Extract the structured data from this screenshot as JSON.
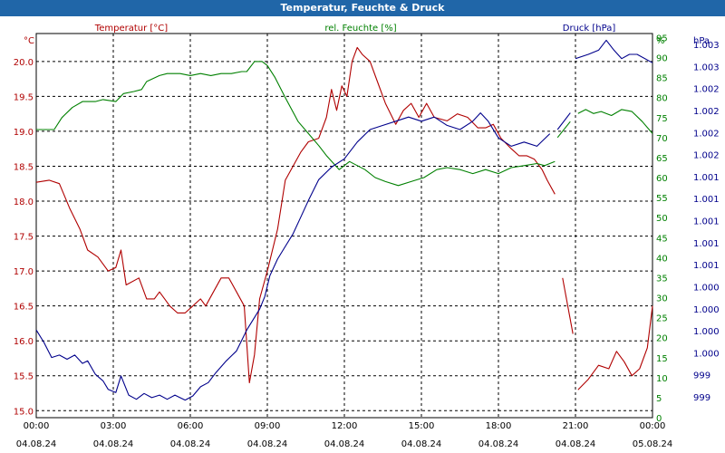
{
  "window": {
    "title": "Temperatur, Feuchte & Druck"
  },
  "colors": {
    "temperature": "#b00000",
    "humidity": "#008000",
    "pressure": "#00008b",
    "titlebar": "#2066a8"
  },
  "chart_data": {
    "type": "line",
    "title": "Temperatur, Feuchte & Druck",
    "grid": true,
    "x": {
      "ticks": [
        {
          "time": "00:00",
          "date": "04.08.24"
        },
        {
          "time": "03:00",
          "date": "04.08.24"
        },
        {
          "time": "06:00",
          "date": "04.08.24"
        },
        {
          "time": "09:00",
          "date": "04.08.24"
        },
        {
          "time": "12:00",
          "date": "04.08.24"
        },
        {
          "time": "15:00",
          "date": "04.08.24"
        },
        {
          "time": "18:00",
          "date": "04.08.24"
        },
        {
          "time": "21:00",
          "date": "04.08.24"
        },
        {
          "time": "00:00",
          "date": "05.08.24"
        }
      ],
      "range_hours": [
        0,
        24
      ]
    },
    "axes": {
      "temperature": {
        "label": "Temperatur [°C]",
        "unit": "°C",
        "range": [
          14.9,
          20.4
        ],
        "ticks": [
          "20.0",
          "19.5",
          "19.0",
          "18.5",
          "18.0",
          "17.5",
          "17.0",
          "16.5",
          "16.0",
          "15.5",
          "15.0"
        ]
      },
      "humidity": {
        "label": "rel. Feuchte [%]",
        "unit": "%",
        "range": [
          0,
          96
        ],
        "ticks": [
          "95",
          "90",
          "85",
          "80",
          "75",
          "70",
          "65",
          "60",
          "55",
          "50",
          "45",
          "40",
          "35",
          "30",
          "25",
          "20",
          "15",
          "10",
          "5",
          "0"
        ]
      },
      "pressure": {
        "label": "Druck [hPa]",
        "unit": "hPa",
        "range": [
          999.0,
          1003.6
        ],
        "ticks": [
          "1.003",
          "1.003",
          "1.002",
          "1.002",
          "1.002",
          "1.002",
          "1.001",
          "1.001",
          "1.001",
          "1.001",
          "1.001",
          "1.000",
          "1.000",
          "1.000",
          "1.000",
          "999",
          "999"
        ]
      }
    },
    "series": [
      {
        "name": "Temperatur",
        "axis": "temperature",
        "segments": [
          [
            [
              0,
              18.27
            ],
            [
              0.5,
              18.3
            ],
            [
              0.9,
              18.25
            ],
            [
              1.3,
              17.9
            ],
            [
              1.7,
              17.6
            ],
            [
              2.0,
              17.3
            ],
            [
              2.4,
              17.2
            ],
            [
              2.8,
              17.0
            ],
            [
              3.1,
              17.05
            ],
            [
              3.3,
              17.3
            ],
            [
              3.5,
              16.8
            ],
            [
              4.0,
              16.9
            ],
            [
              4.3,
              16.6
            ],
            [
              4.6,
              16.6
            ],
            [
              4.8,
              16.7
            ],
            [
              5.0,
              16.6
            ],
            [
              5.2,
              16.5
            ],
            [
              5.5,
              16.4
            ],
            [
              5.8,
              16.4
            ],
            [
              6.1,
              16.5
            ],
            [
              6.4,
              16.6
            ],
            [
              6.6,
              16.5
            ],
            [
              6.9,
              16.7
            ],
            [
              7.2,
              16.9
            ],
            [
              7.5,
              16.9
            ],
            [
              7.8,
              16.7
            ],
            [
              8.1,
              16.5
            ],
            [
              8.3,
              15.4
            ],
            [
              8.5,
              15.8
            ],
            [
              8.7,
              16.6
            ],
            [
              9.0,
              17.0
            ],
            [
              9.4,
              17.6
            ],
            [
              9.7,
              18.3
            ],
            [
              10.0,
              18.5
            ],
            [
              10.3,
              18.7
            ],
            [
              10.6,
              18.85
            ],
            [
              11.0,
              18.9
            ],
            [
              11.3,
              19.2
            ],
            [
              11.5,
              19.6
            ],
            [
              11.7,
              19.3
            ],
            [
              11.9,
              19.65
            ],
            [
              12.1,
              19.5
            ],
            [
              12.3,
              20.0
            ],
            [
              12.5,
              20.2
            ],
            [
              12.7,
              20.1
            ],
            [
              13.0,
              20.0
            ],
            [
              13.3,
              19.7
            ],
            [
              13.6,
              19.4
            ],
            [
              14.0,
              19.1
            ],
            [
              14.3,
              19.3
            ],
            [
              14.6,
              19.4
            ],
            [
              14.9,
              19.2
            ],
            [
              15.2,
              19.4
            ],
            [
              15.5,
              19.2
            ],
            [
              16.0,
              19.15
            ],
            [
              16.4,
              19.25
            ],
            [
              16.8,
              19.2
            ],
            [
              17.2,
              19.05
            ],
            [
              17.5,
              19.05
            ],
            [
              17.8,
              19.1
            ],
            [
              18.1,
              18.9
            ],
            [
              18.5,
              18.75
            ],
            [
              18.8,
              18.65
            ],
            [
              19.1,
              18.65
            ],
            [
              19.4,
              18.6
            ],
            [
              19.7,
              18.45
            ],
            [
              19.9,
              18.3
            ],
            [
              20.2,
              18.1
            ]
          ],
          [
            [
              20.5,
              16.9
            ],
            [
              20.9,
              16.1
            ]
          ],
          [
            [
              21.1,
              15.3
            ],
            [
              21.5,
              15.45
            ],
            [
              21.9,
              15.65
            ],
            [
              22.3,
              15.6
            ],
            [
              22.6,
              15.85
            ],
            [
              22.9,
              15.7
            ],
            [
              23.2,
              15.5
            ],
            [
              23.5,
              15.6
            ],
            [
              23.8,
              15.9
            ],
            [
              24.0,
              16.5
            ]
          ]
        ]
      },
      {
        "name": "rel. Feuchte",
        "axis": "humidity",
        "segments": [
          [
            [
              0,
              72
            ],
            [
              0.7,
              72
            ],
            [
              1.0,
              75
            ],
            [
              1.4,
              77.5
            ],
            [
              1.8,
              79
            ],
            [
              2.3,
              79
            ],
            [
              2.6,
              79.5
            ],
            [
              3.1,
              79
            ],
            [
              3.4,
              81
            ],
            [
              3.8,
              81.5
            ],
            [
              4.1,
              82
            ],
            [
              4.3,
              84
            ],
            [
              4.8,
              85.5
            ],
            [
              5.1,
              86
            ],
            [
              5.6,
              86
            ],
            [
              6.0,
              85.5
            ],
            [
              6.4,
              86
            ],
            [
              6.8,
              85.5
            ],
            [
              7.2,
              86
            ],
            [
              7.6,
              86
            ],
            [
              8.0,
              86.5
            ],
            [
              8.2,
              86.5
            ],
            [
              8.5,
              89
            ],
            [
              8.8,
              89
            ],
            [
              9.0,
              88
            ],
            [
              9.3,
              85
            ],
            [
              9.7,
              80
            ],
            [
              10.2,
              74
            ],
            [
              10.6,
              71
            ],
            [
              11.0,
              68
            ],
            [
              11.3,
              65.5
            ],
            [
              11.8,
              62
            ],
            [
              12.2,
              64
            ],
            [
              12.8,
              62
            ],
            [
              13.2,
              60
            ],
            [
              13.6,
              59
            ],
            [
              14.1,
              58
            ],
            [
              14.6,
              59
            ],
            [
              15.1,
              60
            ],
            [
              15.6,
              62
            ],
            [
              16.0,
              62.5
            ],
            [
              16.5,
              62
            ],
            [
              17.0,
              61
            ],
            [
              17.5,
              62
            ],
            [
              18.0,
              61
            ],
            [
              18.5,
              62.5
            ],
            [
              19.0,
              63
            ],
            [
              19.5,
              63.5
            ],
            [
              19.8,
              63
            ],
            [
              20.2,
              64
            ]
          ],
          [
            [
              20.3,
              70
            ],
            [
              20.8,
              74
            ]
          ],
          [
            [
              21.1,
              76
            ],
            [
              21.4,
              77
            ],
            [
              21.7,
              76
            ],
            [
              22.0,
              76.5
            ],
            [
              22.4,
              75.5
            ],
            [
              22.8,
              77
            ],
            [
              23.2,
              76.5
            ],
            [
              23.6,
              74
            ],
            [
              24.0,
              71
            ]
          ]
        ]
      },
      {
        "name": "Druck",
        "axis": "pressure",
        "segments": [
          [
            [
              0,
              1000.05
            ],
            [
              0.3,
              999.9
            ],
            [
              0.6,
              999.72
            ],
            [
              0.9,
              999.75
            ],
            [
              1.2,
              999.7
            ],
            [
              1.5,
              999.75
            ],
            [
              1.8,
              999.65
            ],
            [
              2.0,
              999.68
            ],
            [
              2.3,
              999.52
            ],
            [
              2.6,
              999.44
            ],
            [
              2.8,
              999.34
            ],
            [
              3.1,
              999.3
            ],
            [
              3.3,
              999.5
            ],
            [
              3.6,
              999.27
            ],
            [
              3.9,
              999.22
            ],
            [
              4.2,
              999.29
            ],
            [
              4.5,
              999.24
            ],
            [
              4.8,
              999.27
            ],
            [
              5.1,
              999.22
            ],
            [
              5.4,
              999.27
            ],
            [
              5.8,
              999.21
            ],
            [
              6.1,
              999.26
            ],
            [
              6.4,
              999.37
            ],
            [
              6.7,
              999.42
            ],
            [
              7.0,
              999.54
            ],
            [
              7.4,
              999.68
            ],
            [
              7.8,
              999.8
            ],
            [
              8.2,
              1000.05
            ],
            [
              8.5,
              1000.2
            ],
            [
              8.7,
              1000.3
            ],
            [
              8.9,
              1000.45
            ],
            [
              9.1,
              1000.7
            ],
            [
              9.4,
              1000.9
            ],
            [
              9.7,
              1001.05
            ],
            [
              10.0,
              1001.2
            ],
            [
              10.3,
              1001.4
            ],
            [
              10.6,
              1001.6
            ],
            [
              11.0,
              1001.85
            ],
            [
              11.5,
              1002.0
            ],
            [
              12.0,
              1002.1
            ],
            [
              12.5,
              1002.3
            ],
            [
              13.0,
              1002.45
            ],
            [
              13.5,
              1002.5
            ],
            [
              14.0,
              1002.55
            ],
            [
              14.5,
              1002.6
            ],
            [
              15.0,
              1002.55
            ],
            [
              15.5,
              1002.6
            ],
            [
              16.0,
              1002.5
            ],
            [
              16.5,
              1002.45
            ],
            [
              17.0,
              1002.55
            ],
            [
              17.3,
              1002.65
            ],
            [
              17.6,
              1002.55
            ],
            [
              18.0,
              1002.35
            ],
            [
              18.5,
              1002.25
            ],
            [
              19.0,
              1002.3
            ],
            [
              19.5,
              1002.25
            ],
            [
              20.0,
              1002.4
            ]
          ],
          [
            [
              20.3,
              1002.45
            ],
            [
              20.8,
              1002.65
            ]
          ],
          [
            [
              21.0,
              1003.3
            ],
            [
              21.5,
              1003.35
            ],
            [
              21.9,
              1003.4
            ],
            [
              22.2,
              1003.52
            ],
            [
              22.5,
              1003.4
            ],
            [
              22.8,
              1003.3
            ],
            [
              23.1,
              1003.35
            ],
            [
              23.4,
              1003.35
            ],
            [
              24.0,
              1003.25
            ]
          ]
        ]
      }
    ]
  }
}
